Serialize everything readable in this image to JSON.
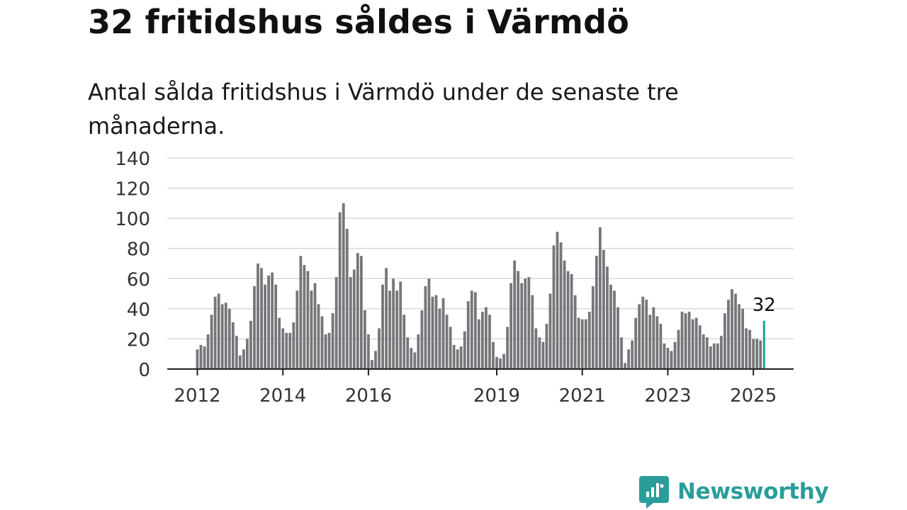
{
  "header": {
    "title": "32 fritidshus såldes i Värmdö",
    "subtitle": "Antal sålda fritidshus i Värmdö under de senaste tre månaderna."
  },
  "brand": {
    "name": "Newsworthy",
    "color": "#2a9d9a"
  },
  "colors": {
    "bar": "#76767a",
    "highlight": "#1aa39a",
    "grid": "#d9d9d9",
    "axis": "#222222"
  },
  "chart_data": {
    "type": "bar",
    "title": "32 fritidshus såldes i Värmdö",
    "subtitle": "Antal sålda fritidshus i Värmdö under de senaste tre månaderna.",
    "ylim": [
      0,
      140
    ],
    "yticks": [
      0,
      20,
      40,
      60,
      80,
      100,
      120,
      140
    ],
    "xticks": [
      "2012",
      "2014",
      "2016",
      "2019",
      "2021",
      "2023",
      "2025"
    ],
    "grid": true,
    "start": "2012-01",
    "last_label": "32",
    "values": [
      13,
      16,
      15,
      23,
      36,
      48,
      50,
      43,
      44,
      40,
      31,
      22,
      9,
      13,
      20,
      32,
      55,
      70,
      67,
      56,
      62,
      64,
      56,
      34,
      27,
      24,
      24,
      31,
      52,
      75,
      69,
      65,
      52,
      57,
      43,
      35,
      23,
      24,
      37,
      61,
      104,
      110,
      93,
      61,
      66,
      77,
      75,
      39,
      23,
      6,
      12,
      27,
      56,
      67,
      52,
      60,
      52,
      58,
      36,
      21,
      14,
      11,
      23,
      39,
      55,
      60,
      48,
      49,
      40,
      47,
      36,
      28,
      16,
      13,
      15,
      25,
      45,
      52,
      51,
      33,
      38,
      41,
      36,
      18,
      8,
      7,
      10,
      28,
      57,
      72,
      65,
      57,
      60,
      61,
      49,
      27,
      21,
      18,
      30,
      50,
      82,
      91,
      84,
      72,
      65,
      63,
      49,
      34,
      33,
      33,
      38,
      55,
      75,
      94,
      79,
      68,
      56,
      52,
      41,
      21,
      4,
      13,
      19,
      34,
      43,
      48,
      46,
      36,
      41,
      35,
      30,
      17,
      14,
      12,
      18,
      26,
      38,
      37,
      38,
      33,
      34,
      29,
      23,
      21,
      15,
      17,
      17,
      22,
      37,
      46,
      53,
      50,
      43,
      40,
      27,
      26,
      20,
      20,
      19,
      32
    ]
  }
}
